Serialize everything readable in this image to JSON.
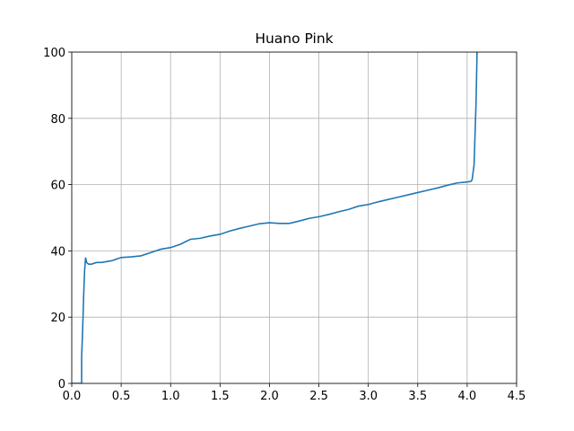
{
  "chart_data": {
    "type": "line",
    "title": "Huano Pink",
    "x": [
      0,
      0.05,
      0.1,
      0.1,
      0.11,
      0.12,
      0.13,
      0.14,
      0.15,
      0.17,
      0.2,
      0.25,
      0.3,
      0.4,
      0.5,
      0.6,
      0.7,
      0.8,
      0.9,
      1.0,
      1.1,
      1.2,
      1.3,
      1.4,
      1.5,
      1.6,
      1.7,
      1.8,
      1.9,
      2.0,
      2.1,
      2.2,
      2.3,
      2.4,
      2.5,
      2.6,
      2.7,
      2.8,
      2.9,
      3.0,
      3.1,
      3.2,
      3.3,
      3.4,
      3.5,
      3.6,
      3.7,
      3.8,
      3.9,
      4.0,
      4.04,
      4.05,
      4.07,
      4.09,
      4.1
    ],
    "series": [
      {
        "color": "#1f77b4",
        "values": [
          0,
          0,
          0,
          8,
          16,
          26,
          34,
          38,
          36.5,
          36,
          36,
          36.5,
          36.5,
          37,
          38,
          38.2,
          38.5,
          39.5,
          40.5,
          41,
          42,
          43.5,
          43.8,
          44.5,
          45,
          46,
          46.8,
          47.5,
          48.2,
          48.5,
          48.3,
          48.3,
          49,
          49.8,
          50.3,
          51,
          51.8,
          52.5,
          53.5,
          54,
          54.8,
          55.5,
          56.2,
          56.9,
          57.6,
          58.3,
          59,
          59.8,
          60.5,
          60.8,
          61,
          61.5,
          66,
          85,
          100
        ]
      }
    ],
    "xlim": [
      0,
      4.5
    ],
    "xticks": [
      {
        "value": 0,
        "label": "0.0"
      },
      0.5,
      {
        "value": 1,
        "label": "1.0"
      },
      1.5,
      {
        "value": 2,
        "label": "2.0"
      },
      2.5,
      {
        "value": 3,
        "label": "3.0"
      },
      3.5,
      {
        "value": 4,
        "label": "4.0"
      },
      4.5
    ],
    "ylim": [
      0,
      100
    ],
    "yticks": [
      0,
      20,
      40,
      60,
      80,
      100
    ],
    "grid": true
  }
}
